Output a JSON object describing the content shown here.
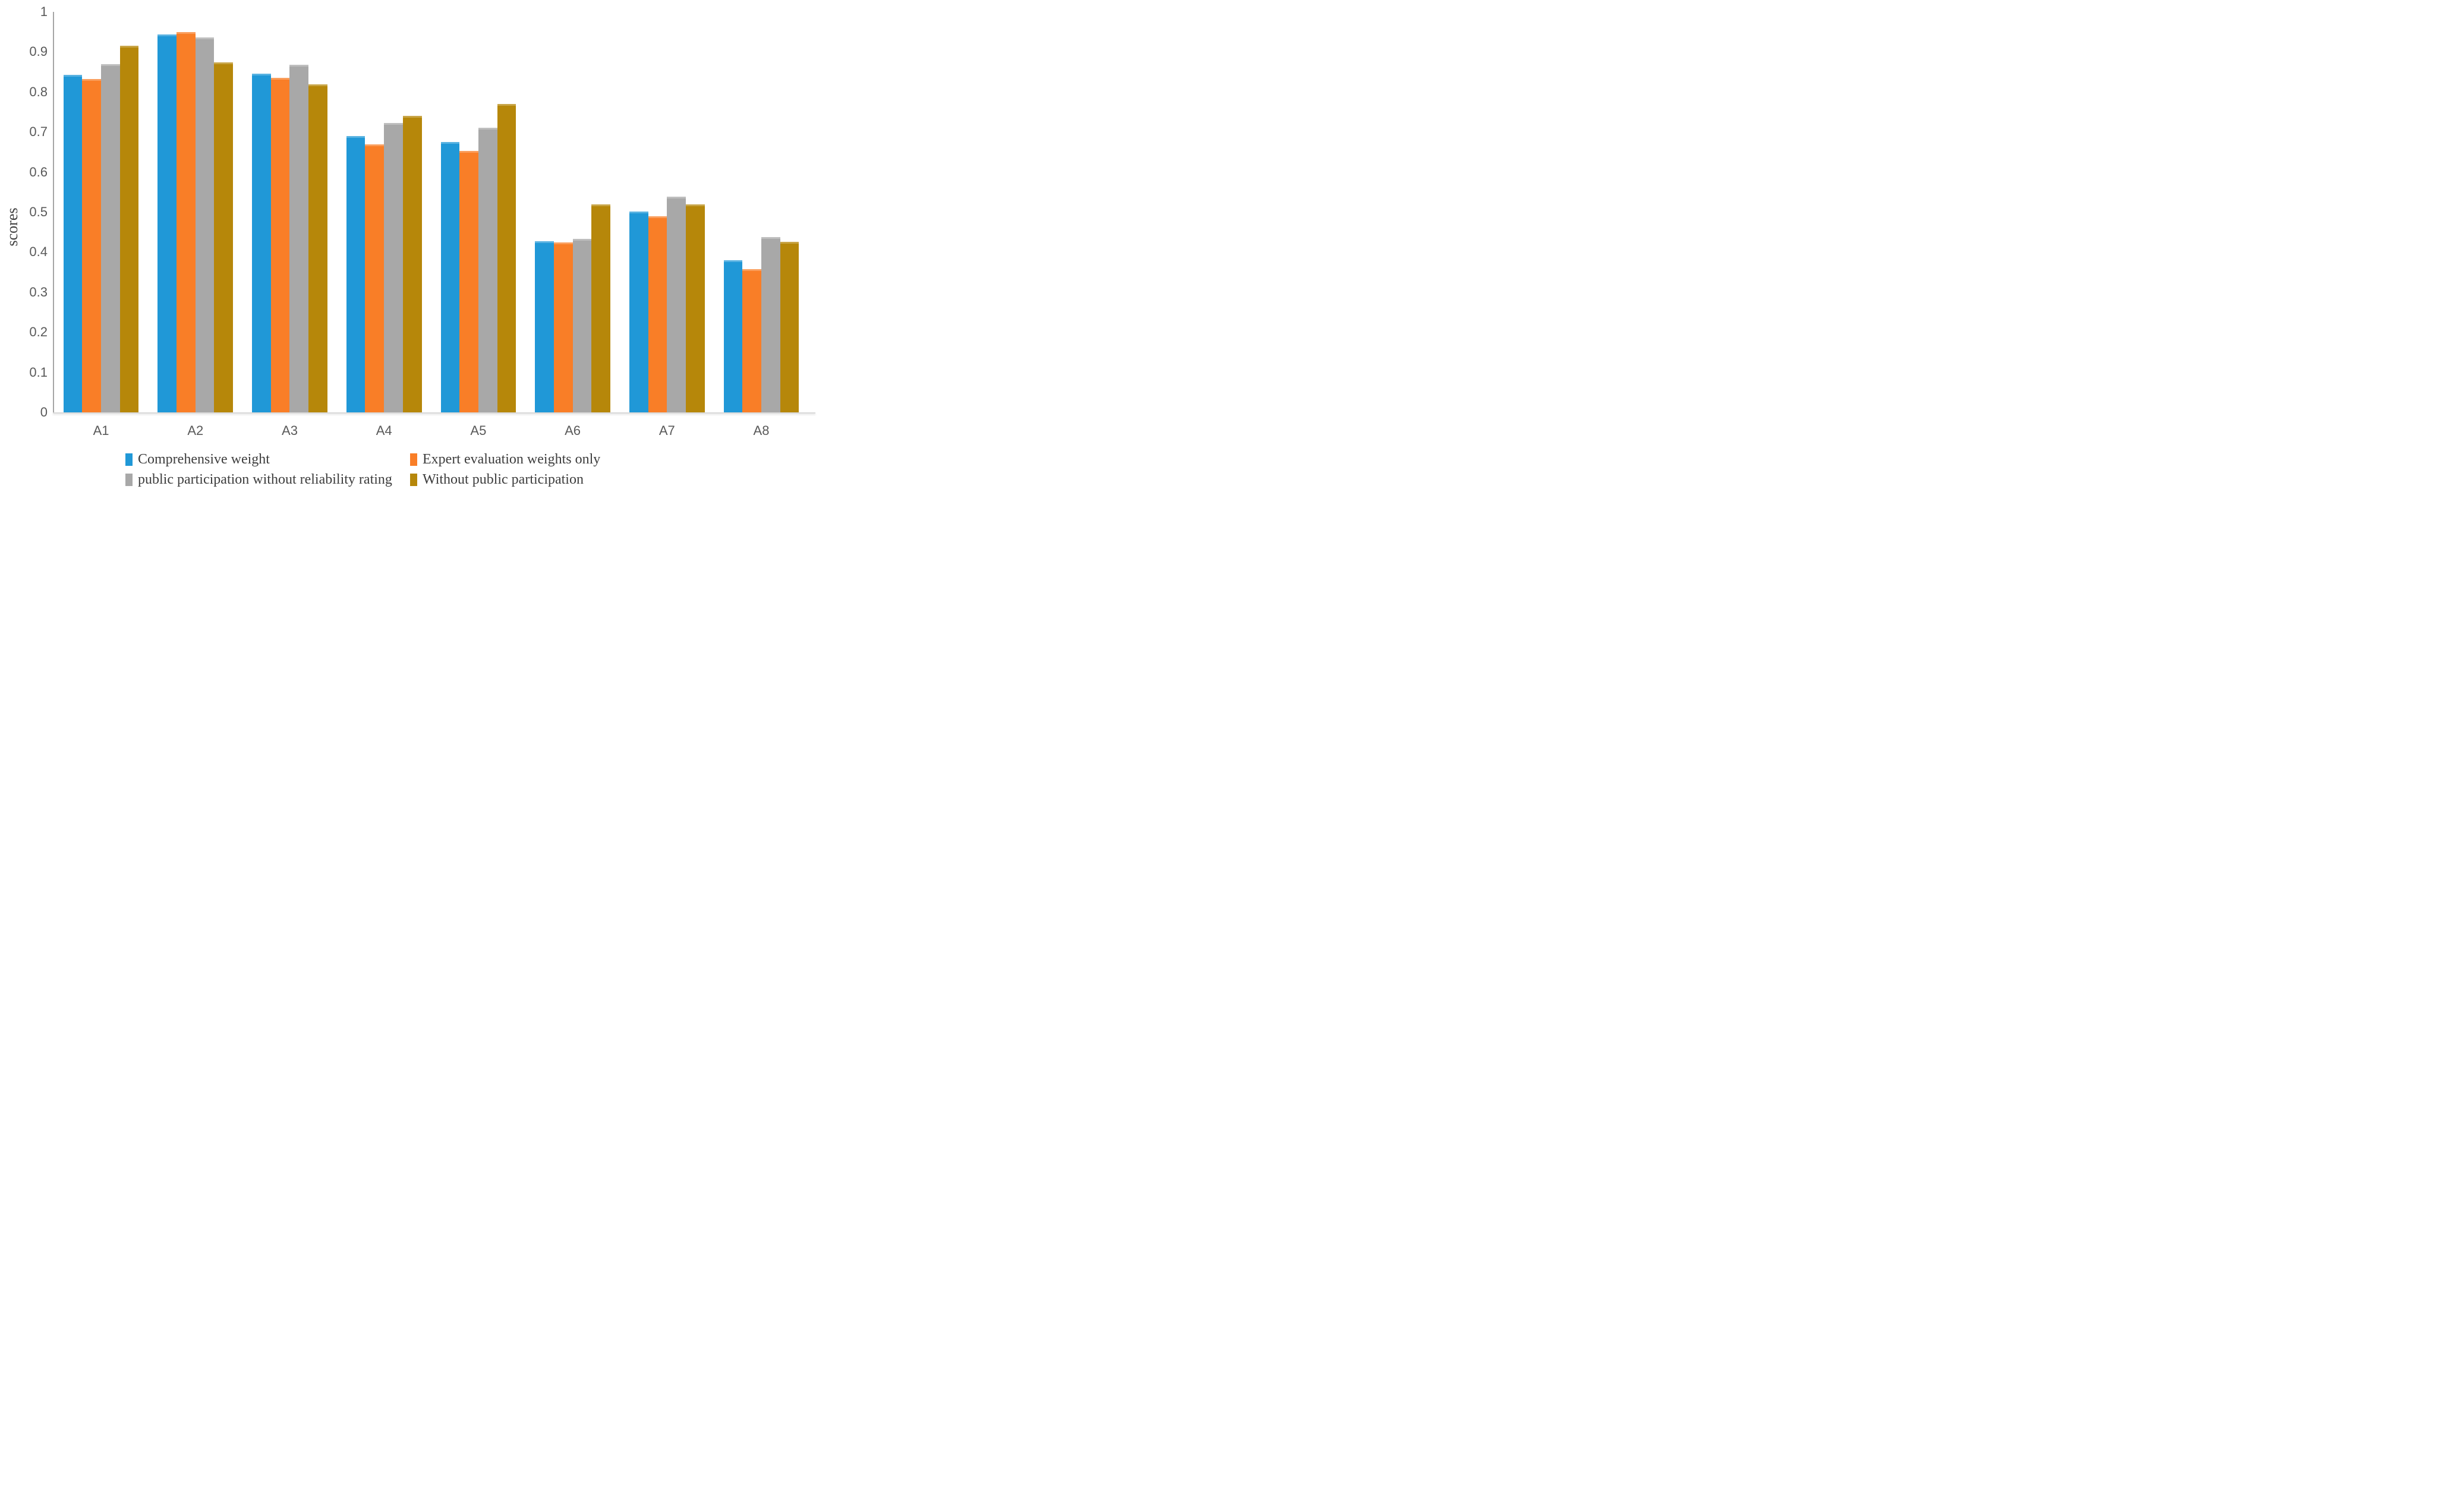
{
  "page": {
    "background": "#ffffff"
  },
  "y_axis": {
    "title": "scores",
    "tick_labels": [
      "1",
      "0.9",
      "0.8",
      "0.7",
      "0.6",
      "0.5",
      "0.4",
      "0.3",
      "0.2",
      "0.1",
      "0"
    ],
    "tick_color": "#595959",
    "axis_line_color": "#a6a6a6"
  },
  "x_axis": {
    "label_color": "#595959",
    "baseline_color": "#d9d9d9"
  },
  "chart_data": {
    "type": "bar",
    "title": "",
    "categories": [
      "A1",
      "A2",
      "A3",
      "A4",
      "A5",
      "A6",
      "A7",
      "A8"
    ],
    "series": [
      {
        "name": "Comprehensive weight",
        "color": "#2098d7",
        "values": [
          0.843,
          0.943,
          0.846,
          0.69,
          0.675,
          0.427,
          0.501,
          0.38
        ]
      },
      {
        "name": "Expert evaluation weights only",
        "color": "#f97e27",
        "values": [
          0.833,
          0.95,
          0.836,
          0.669,
          0.653,
          0.425,
          0.489,
          0.358
        ]
      },
      {
        "name": "public participation without reliability rating",
        "color": "#a8a8a8",
        "values": [
          0.869,
          0.936,
          0.868,
          0.722,
          0.711,
          0.433,
          0.539,
          0.438
        ]
      },
      {
        "name": "Without public participation",
        "color": "#b6870a",
        "values": [
          0.915,
          0.874,
          0.819,
          0.741,
          0.77,
          0.52,
          0.519,
          0.426
        ]
      }
    ],
    "xlabel": "",
    "ylabel": "scores",
    "ylim": [
      0,
      1
    ],
    "grid": false,
    "legend_position": "bottom"
  }
}
